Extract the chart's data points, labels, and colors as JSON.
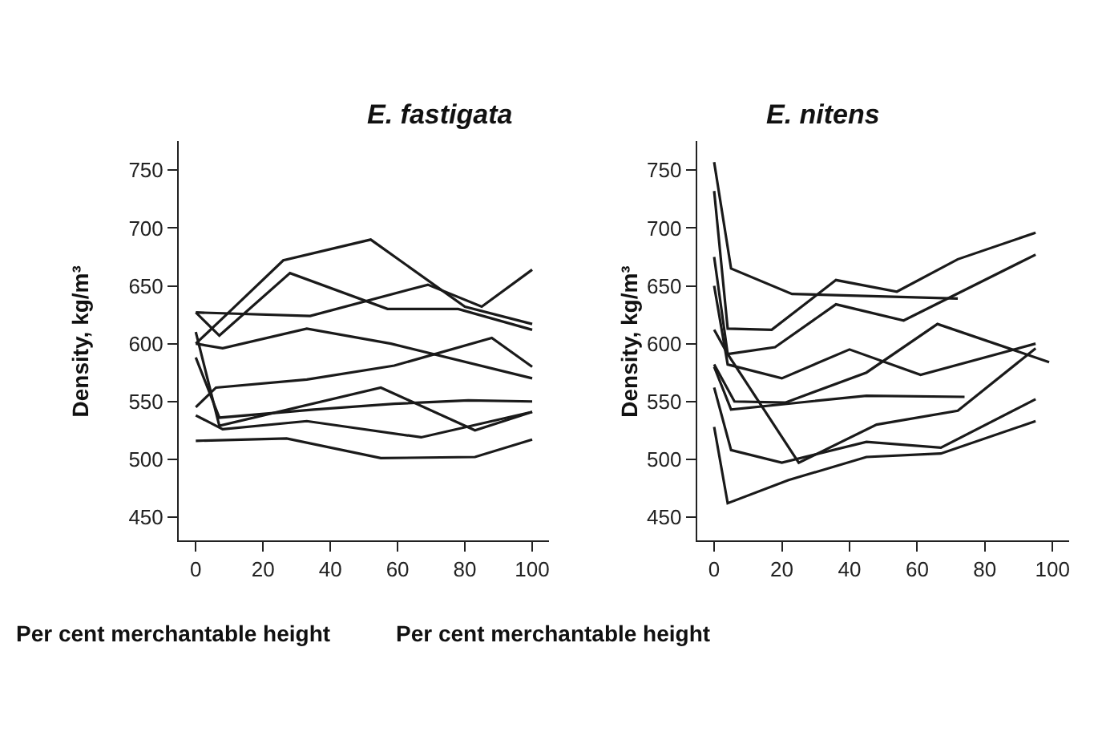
{
  "chart_data": [
    {
      "type": "line",
      "title": "E. fastigata",
      "xlabel": "Per cent merchantable height",
      "ylabel": "Density, kg/m³",
      "xlim": [
        -5,
        105
      ],
      "ylim": [
        430,
        775
      ],
      "xticks": [
        0,
        20,
        40,
        60,
        80,
        100
      ],
      "yticks": [
        450,
        500,
        550,
        600,
        650,
        700,
        750
      ],
      "grid": false,
      "marker": "none",
      "line_style": "solid",
      "series": [
        {
          "color": "#1a1a1a",
          "x": [
            0,
            8,
            26,
            52,
            80,
            100
          ],
          "values": [
            600,
            622,
            672,
            690,
            632,
            617
          ]
        },
        {
          "color": "#1a1a1a",
          "x": [
            0,
            7,
            28,
            57,
            78,
            100
          ],
          "values": [
            627,
            607,
            661,
            630,
            630,
            612
          ]
        },
        {
          "color": "#1a1a1a",
          "x": [
            0,
            34,
            69,
            85,
            100
          ],
          "values": [
            627,
            624,
            651,
            632,
            664
          ]
        },
        {
          "color": "#1a1a1a",
          "x": [
            0,
            8,
            33,
            58,
            100
          ],
          "values": [
            600,
            596,
            613,
            600,
            570
          ]
        },
        {
          "color": "#1a1a1a",
          "x": [
            0,
            6,
            33,
            59,
            88,
            100
          ],
          "values": [
            545,
            562,
            569,
            581,
            605,
            580
          ]
        },
        {
          "color": "#1a1a1a",
          "x": [
            0,
            7,
            55,
            83,
            100
          ],
          "values": [
            610,
            529,
            562,
            525,
            541
          ]
        },
        {
          "color": "#1a1a1a",
          "x": [
            0,
            7,
            35,
            59,
            81,
            100
          ],
          "values": [
            588,
            536,
            543,
            548,
            551,
            550
          ]
        },
        {
          "color": "#1a1a1a",
          "x": [
            0,
            8,
            33,
            67,
            100
          ],
          "values": [
            538,
            526,
            533,
            519,
            541
          ]
        },
        {
          "color": "#1a1a1a",
          "x": [
            0,
            27,
            55,
            83,
            100
          ],
          "values": [
            516,
            518,
            501,
            502,
            517
          ]
        }
      ]
    },
    {
      "type": "line",
      "title": "E. nitens",
      "xlabel": "Per cent merchantable height",
      "ylabel": "Density, kg/m³",
      "xlim": [
        -5,
        105
      ],
      "ylim": [
        430,
        775
      ],
      "xticks": [
        0,
        20,
        40,
        60,
        80,
        100
      ],
      "yticks": [
        450,
        500,
        550,
        600,
        650,
        700,
        750
      ],
      "grid": false,
      "marker": "none",
      "line_style": "solid",
      "series": [
        {
          "color": "#1a1a1a",
          "x": [
            0,
            5,
            23,
            72
          ],
          "values": [
            757,
            665,
            643,
            639
          ]
        },
        {
          "color": "#1a1a1a",
          "x": [
            0,
            4,
            17,
            36,
            54,
            72,
            95
          ],
          "values": [
            732,
            613,
            612,
            655,
            645,
            673,
            696
          ]
        },
        {
          "color": "#1a1a1a",
          "x": [
            0,
            4,
            18,
            36,
            56,
            95
          ],
          "values": [
            675,
            591,
            597,
            634,
            620,
            677
          ]
        },
        {
          "color": "#1a1a1a",
          "x": [
            0,
            4,
            20,
            40,
            61,
            95
          ],
          "values": [
            650,
            582,
            570,
            595,
            573,
            600
          ]
        },
        {
          "color": "#1a1a1a",
          "x": [
            0,
            4,
            25,
            48,
            72,
            95
          ],
          "values": [
            612,
            591,
            497,
            530,
            542,
            596
          ]
        },
        {
          "color": "#1a1a1a",
          "x": [
            0,
            6,
            21,
            45,
            66,
            99
          ],
          "values": [
            582,
            550,
            549,
            575,
            617,
            584
          ]
        },
        {
          "color": "#1a1a1a",
          "x": [
            0,
            5,
            45,
            74
          ],
          "values": [
            580,
            543,
            555,
            554
          ]
        },
        {
          "color": "#1a1a1a",
          "x": [
            0,
            5,
            20,
            45,
            67,
            95
          ],
          "values": [
            562,
            508,
            497,
            515,
            510,
            552
          ]
        },
        {
          "color": "#1a1a1a",
          "x": [
            0,
            4,
            22,
            45,
            67,
            95
          ],
          "values": [
            528,
            462,
            482,
            502,
            505,
            533
          ]
        }
      ]
    }
  ]
}
